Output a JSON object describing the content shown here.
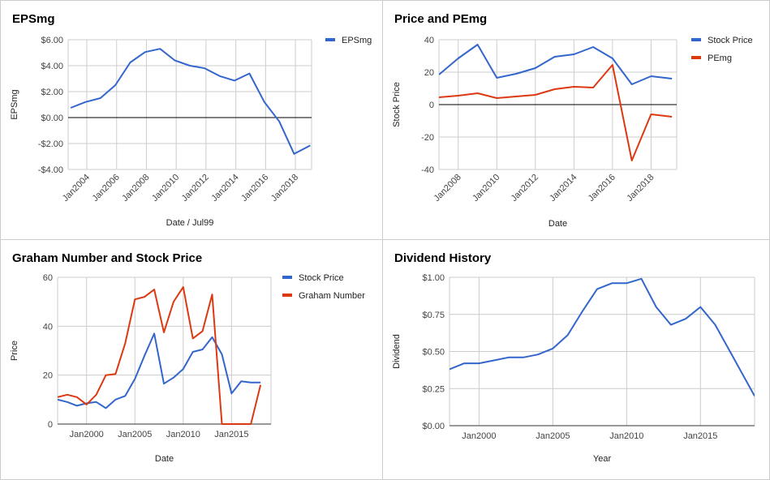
{
  "colors": {
    "blue": "#3366cc",
    "red": "#dc3912",
    "grid": "#cccccc",
    "zero": "#000000"
  },
  "chart_data": [
    {
      "id": "eps",
      "type": "line",
      "title": "EPSmg",
      "xlabel": "Date / Jul99",
      "ylabel": "EPSmg",
      "x_type": "date",
      "xlim": [
        "2002-10-01",
        "2019-02-01"
      ],
      "ylim": [
        -4,
        6
      ],
      "y_ticks": [
        6,
        4,
        2,
        0,
        -2,
        -4
      ],
      "y_tick_labels": [
        "$6.00",
        "$4.00",
        "$2.00",
        "$0.00",
        "-$2.00",
        "-$4.00"
      ],
      "x_ticks": [
        "2004-01-01",
        "2006-01-01",
        "2008-01-01",
        "2010-01-01",
        "2012-01-01",
        "2014-01-01",
        "2016-01-01",
        "2018-01-01"
      ],
      "x_tick_labels": [
        "Jan2004",
        "Jan2006",
        "Jan2008",
        "Jan2010",
        "Jan2012",
        "Jan2014",
        "Jan2016",
        "Jan2018"
      ],
      "x_tick_rotate": true,
      "zero_line": true,
      "grid": true,
      "legend_position": "right",
      "series": [
        {
          "name": "EPSmg",
          "color": "#3366cc",
          "x": [
            "2002-12-01",
            "2003-12-01",
            "2004-12-01",
            "2005-12-01",
            "2006-12-01",
            "2007-12-01",
            "2008-12-01",
            "2009-12-01",
            "2010-12-01",
            "2011-12-01",
            "2012-12-01",
            "2013-12-01",
            "2014-12-01",
            "2015-12-01",
            "2016-12-01",
            "2017-12-01",
            "2019-01-01"
          ],
          "y": [
            0.75,
            1.2,
            1.5,
            2.5,
            4.25,
            5.05,
            5.3,
            4.4,
            4.0,
            3.8,
            3.2,
            2.85,
            3.4,
            1.2,
            -0.3,
            -2.8,
            -2.15
          ]
        }
      ]
    },
    {
      "id": "pe",
      "type": "line",
      "title": "Price and PEmg",
      "xlabel": "Date",
      "ylabel": "Stock Price",
      "x_type": "date",
      "xlim": [
        "2007-01-01",
        "2019-05-01"
      ],
      "ylim": [
        -40,
        40
      ],
      "y_ticks": [
        40,
        20,
        0,
        -20,
        -40
      ],
      "y_tick_labels": [
        "40",
        "20",
        "0",
        "-20",
        "-40"
      ],
      "x_ticks": [
        "2008-01-01",
        "2010-01-01",
        "2012-01-01",
        "2014-01-01",
        "2016-01-01",
        "2018-01-01"
      ],
      "x_tick_labels": [
        "Jan2008",
        "Jan2010",
        "Jan2012",
        "Jan2014",
        "Jan2016",
        "Jan2018"
      ],
      "x_tick_rotate": true,
      "zero_line": true,
      "grid": true,
      "legend_position": "right",
      "series": [
        {
          "name": "Stock Price",
          "color": "#3366cc",
          "x": [
            "2007-01-01",
            "2008-01-01",
            "2009-01-01",
            "2010-01-01",
            "2011-01-01",
            "2012-01-01",
            "2013-01-01",
            "2014-01-01",
            "2015-01-01",
            "2016-01-01",
            "2017-01-01",
            "2018-01-01",
            "2019-02-01"
          ],
          "y": [
            18.5,
            28.5,
            37,
            16.5,
            19,
            22.5,
            29.5,
            31,
            35.5,
            28.5,
            12.5,
            17.5,
            16
          ]
        },
        {
          "name": "PEmg",
          "color": "#dc3912",
          "x": [
            "2007-01-01",
            "2008-01-01",
            "2009-01-01",
            "2010-01-01",
            "2011-01-01",
            "2012-01-01",
            "2013-01-01",
            "2014-01-01",
            "2015-01-01",
            "2016-01-01",
            "2017-01-01",
            "2018-01-01",
            "2019-02-01"
          ],
          "y": [
            4.5,
            5.5,
            7,
            4,
            5,
            6,
            9.5,
            11,
            10.5,
            24.5,
            -34.5,
            -6,
            -7.5
          ]
        }
      ]
    },
    {
      "id": "gn",
      "type": "line",
      "title": "Graham Number and Stock Price",
      "xlabel": "Date",
      "ylabel": "Price",
      "x_type": "date",
      "xlim": [
        "1997-01-01",
        "2019-02-01"
      ],
      "ylim": [
        0,
        60
      ],
      "y_ticks": [
        60,
        40,
        20,
        0
      ],
      "y_tick_labels": [
        "60",
        "40",
        "20",
        "0"
      ],
      "x_ticks": [
        "2000-01-01",
        "2005-01-01",
        "2010-01-01",
        "2015-01-01"
      ],
      "x_tick_labels": [
        "Jan2000",
        "Jan2005",
        "Jan2010",
        "Jan2015"
      ],
      "x_tick_rotate": false,
      "zero_line": false,
      "grid": true,
      "legend_position": "right",
      "series": [
        {
          "name": "Stock Price",
          "color": "#3366cc",
          "x": [
            "1997-01-01",
            "1998-01-01",
            "1999-01-01",
            "2000-01-01",
            "2001-01-01",
            "2002-01-01",
            "2003-01-01",
            "2004-01-01",
            "2005-01-01",
            "2006-01-01",
            "2007-01-01",
            "2008-01-01",
            "2009-01-01",
            "2010-01-01",
            "2011-01-01",
            "2012-01-01",
            "2013-01-01",
            "2014-01-01",
            "2015-01-01",
            "2016-01-01",
            "2017-01-01",
            "2018-01-01"
          ],
          "y": [
            10,
            9,
            7.5,
            8.5,
            9,
            6.5,
            10,
            11.5,
            18.5,
            28,
            37,
            16.5,
            19,
            22.5,
            29.5,
            30.5,
            35.5,
            28.5,
            12.5,
            17.5,
            17,
            17
          ]
        },
        {
          "name": "Graham Number",
          "color": "#dc3912",
          "x": [
            "1997-01-01",
            "1998-01-01",
            "1999-01-01",
            "2000-01-01",
            "2001-01-01",
            "2002-01-01",
            "2003-01-01",
            "2004-01-01",
            "2005-01-01",
            "2006-01-01",
            "2007-01-01",
            "2008-01-01",
            "2009-01-01",
            "2010-01-01",
            "2011-01-01",
            "2012-01-01",
            "2013-01-01",
            "2014-01-01",
            "2015-01-01",
            "2016-01-01",
            "2017-01-01",
            "2018-01-01"
          ],
          "y": [
            11,
            12,
            11,
            8,
            12,
            20,
            20.5,
            33,
            51,
            52,
            55,
            37.5,
            50,
            56,
            35,
            38,
            53,
            0,
            0,
            0,
            0,
            16
          ]
        }
      ]
    },
    {
      "id": "div",
      "type": "line",
      "title": "Dividend History",
      "xlabel": "Year",
      "ylabel": "Dividend",
      "x_type": "date",
      "xlim": [
        "1998-01-01",
        "2018-09-01"
      ],
      "ylim": [
        0,
        1
      ],
      "y_ticks": [
        1,
        0.75,
        0.5,
        0.25,
        0
      ],
      "y_tick_labels": [
        "$1.00",
        "$0.75",
        "$0.50",
        "$0.25",
        "$0.00"
      ],
      "x_ticks": [
        "2000-01-01",
        "2005-01-01",
        "2010-01-01",
        "2015-01-01"
      ],
      "x_tick_labels": [
        "Jan2000",
        "Jan2005",
        "Jan2010",
        "Jan2015"
      ],
      "x_tick_rotate": false,
      "zero_line": false,
      "grid": true,
      "legend_position": "none",
      "series": [
        {
          "color": "#3366cc",
          "x": [
            "1998-01-01",
            "1999-01-01",
            "2000-01-01",
            "2001-01-01",
            "2002-01-01",
            "2003-01-01",
            "2004-01-01",
            "2005-01-01",
            "2006-01-01",
            "2007-01-01",
            "2008-01-01",
            "2009-01-01",
            "2010-01-01",
            "2011-01-01",
            "2012-01-01",
            "2013-01-01",
            "2014-01-01",
            "2015-01-01",
            "2016-01-01",
            "2017-01-01",
            "2018-09-01"
          ],
          "y": [
            0.38,
            0.42,
            0.42,
            0.44,
            0.46,
            0.46,
            0.48,
            0.52,
            0.61,
            0.77,
            0.92,
            0.96,
            0.96,
            0.99,
            0.8,
            0.68,
            0.72,
            0.8,
            0.68,
            0.5,
            0.2
          ]
        }
      ]
    }
  ]
}
